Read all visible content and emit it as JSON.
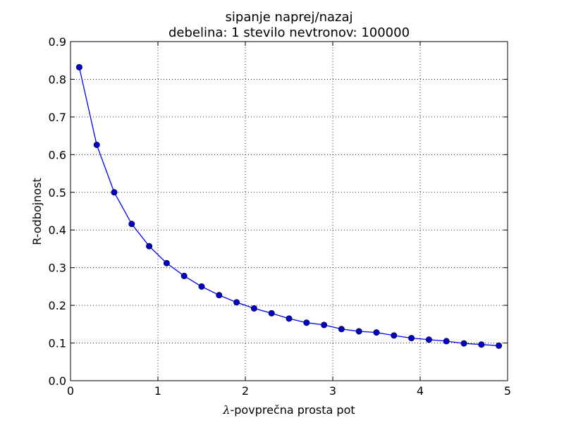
{
  "chart_data": {
    "type": "line",
    "title_line1": "sipanje naprej/nazaj",
    "title_line2": "debelina: 1   stevilo nevtronov: 100000",
    "xlabel_symbol": "λ",
    "xlabel": "-povprečna prosta pot",
    "ylabel": "R-odbojnost",
    "xlim": [
      0,
      5
    ],
    "ylim": [
      0,
      0.9
    ],
    "xticks": [
      0,
      1,
      2,
      3,
      4,
      5
    ],
    "xtick_labels": [
      "0",
      "1",
      "2",
      "3",
      "4",
      "5"
    ],
    "yticks": [
      0,
      0.1,
      0.2,
      0.3,
      0.4,
      0.5,
      0.6,
      0.7,
      0.8,
      0.9
    ],
    "ytick_labels": [
      "0.0",
      "0.1",
      "0.2",
      "0.3",
      "0.4",
      "0.5",
      "0.6",
      "0.7",
      "0.8",
      "0.9"
    ],
    "grid": true,
    "series": [
      {
        "color": "#0000ff",
        "marker_color": "#0000cc",
        "x": [
          0.1,
          0.3,
          0.5,
          0.7,
          0.9,
          1.1,
          1.3,
          1.5,
          1.7,
          1.9,
          2.1,
          2.3,
          2.5,
          2.7,
          2.9,
          3.1,
          3.3,
          3.5,
          3.7,
          3.9,
          4.1,
          4.3,
          4.5,
          4.7,
          4.9
        ],
        "y": [
          0.832,
          0.626,
          0.5,
          0.416,
          0.357,
          0.312,
          0.278,
          0.25,
          0.227,
          0.208,
          0.192,
          0.179,
          0.165,
          0.154,
          0.148,
          0.137,
          0.131,
          0.128,
          0.12,
          0.113,
          0.109,
          0.105,
          0.099,
          0.096,
          0.093
        ]
      }
    ]
  }
}
